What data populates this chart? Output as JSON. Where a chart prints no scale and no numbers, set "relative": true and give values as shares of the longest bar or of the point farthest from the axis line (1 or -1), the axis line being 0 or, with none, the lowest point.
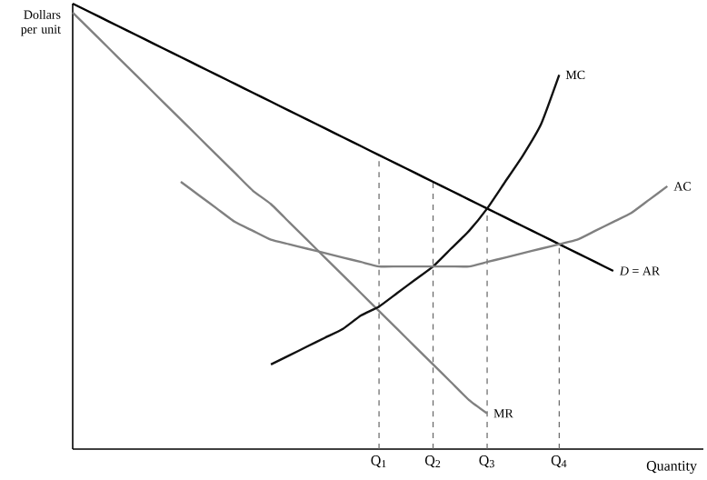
{
  "chart_data": {
    "type": "line",
    "relative": true,
    "ylabel": "Dollars per unit",
    "xlabel": "Quantity",
    "categories": [
      null,
      null,
      null,
      null,
      null,
      null,
      null,
      null,
      null,
      null,
      null,
      null,
      null,
      null,
      null,
      null,
      null,
      "Q$_{1}$",
      null,
      null,
      "Q$_{2}$",
      null,
      null,
      "Q$_{3}$",
      null,
      null,
      null,
      "Q$_{4}$",
      null,
      null,
      null,
      null,
      null,
      null,
      null,
      null
    ],
    "grid": false,
    "marker": "none",
    "tick_labels": "x",
    "series": [
      {
        "name": "*D* = AR",
        "color": "#000000",
        "values": [
          1.0,
          0.98,
          0.96,
          0.94,
          0.92,
          0.9,
          0.88,
          0.86,
          0.84,
          0.82,
          0.8,
          0.78,
          0.76,
          0.74,
          0.72,
          0.7,
          0.68,
          0.66,
          0.64,
          0.62,
          0.6,
          0.58,
          0.56,
          0.54,
          0.52,
          0.5,
          0.48,
          0.46,
          0.44,
          0.42,
          0.4,
          null,
          null,
          null,
          null,
          null
        ]
      },
      {
        "name": "MR",
        "color": "#808080",
        "values": [
          0.98,
          0.94,
          0.9,
          0.86,
          0.82,
          0.78,
          0.74,
          0.7,
          0.66,
          0.62,
          0.58,
          0.55,
          0.51,
          0.47,
          0.43,
          0.39,
          0.35,
          0.31,
          0.27,
          0.23,
          0.19,
          0.15,
          0.11,
          0.08,
          null,
          null,
          null,
          null,
          null,
          null,
          null,
          null,
          null,
          null,
          null,
          null
        ]
      },
      {
        "name": "MC",
        "color": "#111111",
        "values": [
          null,
          null,
          null,
          null,
          null,
          null,
          null,
          null,
          null,
          null,
          null,
          0.19,
          0.21,
          0.23,
          0.25,
          0.27,
          0.3,
          0.32,
          0.35,
          0.38,
          0.41,
          0.45,
          0.49,
          0.54,
          0.6,
          0.66,
          0.73,
          0.84,
          null,
          null,
          null,
          null,
          null,
          null,
          null,
          null
        ]
      },
      {
        "name": "AC",
        "color": "#808080",
        "values": [
          null,
          null,
          null,
          null,
          null,
          null,
          0.6,
          0.57,
          0.54,
          0.51,
          0.49,
          0.47,
          0.46,
          0.45,
          0.44,
          0.43,
          0.42,
          0.41,
          0.41,
          0.41,
          0.41,
          0.41,
          0.41,
          0.42,
          0.43,
          0.44,
          0.45,
          0.46,
          0.47,
          0.49,
          0.51,
          0.53,
          0.56,
          0.59,
          null,
          null
        ]
      }
    ],
    "ref_lines": [
      {
        "axis": "x",
        "value": "Q$_{1}$",
        "color": "#666666",
        "line_style": "dashed"
      },
      {
        "axis": "x",
        "value": "Q$_{2}$",
        "color": "#666666",
        "line_style": "dashed"
      },
      {
        "axis": "x",
        "value": "Q$_{3}$",
        "color": "#666666",
        "line_style": "dashed"
      },
      {
        "axis": "x",
        "value": "Q$_{4}$",
        "color": "#666666",
        "line_style": "dashed"
      }
    ]
  }
}
